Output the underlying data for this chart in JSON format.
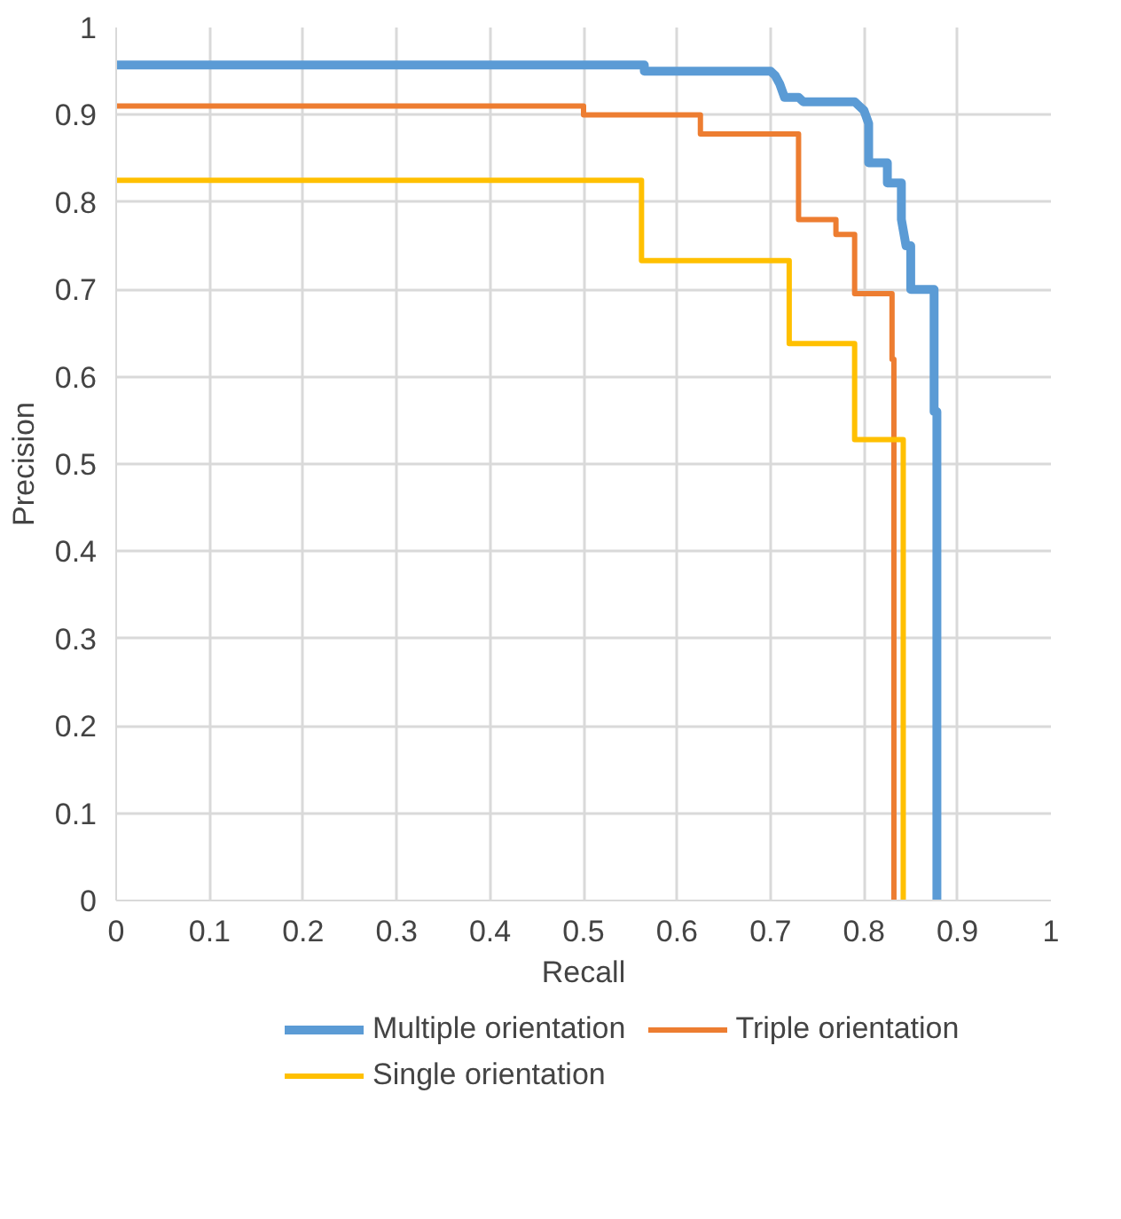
{
  "chart_data": {
    "type": "line",
    "xlabel": "Recall",
    "ylabel": "Precision",
    "xlim": [
      0,
      1
    ],
    "ylim": [
      0,
      1
    ],
    "xticks": [
      0,
      0.1,
      0.2,
      0.3,
      0.4,
      0.5,
      0.6,
      0.7,
      0.8,
      0.9,
      1
    ],
    "yticks": [
      0,
      0.1,
      0.2,
      0.3,
      0.4,
      0.5,
      0.6,
      0.7,
      0.8,
      0.9,
      1
    ],
    "grid": true,
    "legend": "bottom",
    "marker": "none",
    "line_style": "solid",
    "series": [
      {
        "name": "Multiple orientation",
        "color": "#5b9bd5",
        "x": [
          0,
          0.565,
          0.565,
          0.7,
          0.705,
          0.71,
          0.715,
          0.73,
          0.735,
          0.79,
          0.795,
          0.8,
          0.805,
          0.805,
          0.825,
          0.825,
          0.84,
          0.84,
          0.845,
          0.85,
          0.85,
          0.875,
          0.875,
          0.878,
          0.878
        ],
        "values": [
          0.957,
          0.957,
          0.95,
          0.95,
          0.945,
          0.935,
          0.92,
          0.92,
          0.915,
          0.915,
          0.91,
          0.905,
          0.89,
          0.845,
          0.845,
          0.822,
          0.822,
          0.78,
          0.75,
          0.75,
          0.7,
          0.7,
          0.56,
          0.56,
          0
        ]
      },
      {
        "name": "Triple orientation",
        "color": "#ed7d31",
        "x": [
          0,
          0.5,
          0.5,
          0.625,
          0.625,
          0.73,
          0.73,
          0.77,
          0.77,
          0.79,
          0.79,
          0.83,
          0.83,
          0.832,
          0.832
        ],
        "values": [
          0.91,
          0.91,
          0.9,
          0.9,
          0.878,
          0.878,
          0.78,
          0.78,
          0.763,
          0.763,
          0.695,
          0.695,
          0.62,
          0.62,
          0
        ]
      },
      {
        "name": "Single orientation",
        "color": "#ffc000",
        "x": [
          0,
          0.562,
          0.562,
          0.72,
          0.72,
          0.79,
          0.79,
          0.842,
          0.842
        ],
        "values": [
          0.825,
          0.825,
          0.733,
          0.733,
          0.638,
          0.638,
          0.528,
          0.528,
          0
        ]
      }
    ]
  }
}
